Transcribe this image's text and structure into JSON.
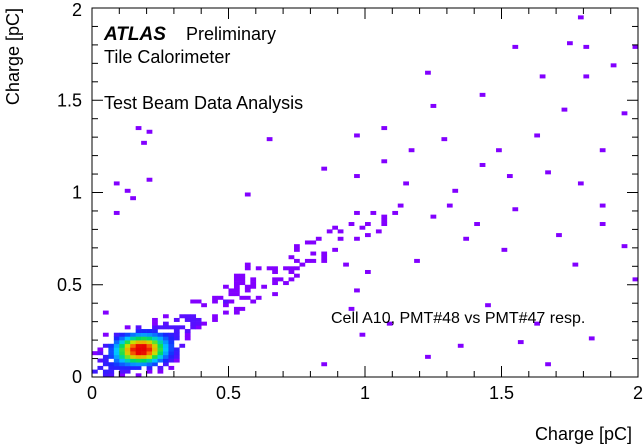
{
  "chart_data": {
    "type": "heatmap",
    "xlabel": "Charge [pC]",
    "ylabel": "Charge [pC]",
    "xlim": [
      0,
      2
    ],
    "ylim": [
      0,
      2
    ],
    "bin_width": 0.02,
    "x_ticks": [
      {
        "value": 0,
        "label": "0"
      },
      {
        "value": 0.5,
        "label": "0.5"
      },
      {
        "value": 1,
        "label": "1"
      },
      {
        "value": 1.5,
        "label": "1.5"
      },
      {
        "value": 2,
        "label": "2"
      }
    ],
    "y_ticks": [
      {
        "value": 0,
        "label": "0"
      },
      {
        "value": 0.5,
        "label": "0.5"
      },
      {
        "value": 1,
        "label": "1"
      },
      {
        "value": 1.5,
        "label": "1.5"
      },
      {
        "value": 2,
        "label": "2"
      }
    ],
    "hotspot": {
      "x": 0.18,
      "y": 0.15
    },
    "scattered_bins": [
      [
        1.78,
        1.94
      ],
      [
        1.74,
        1.8
      ],
      [
        1.81,
        1.79
      ],
      [
        1.55,
        1.78
      ],
      [
        1.98,
        1.78
      ],
      [
        1.91,
        1.68
      ],
      [
        1.81,
        1.62
      ],
      [
        1.64,
        1.62
      ],
      [
        1.43,
        1.53
      ],
      [
        1.22,
        1.64
      ],
      [
        1.29,
        1.28
      ],
      [
        1.17,
        1.23
      ],
      [
        0.96,
        1.31
      ],
      [
        0.97,
        1.08
      ],
      [
        0.84,
        1.14
      ],
      [
        1.06,
        1.17
      ],
      [
        1.15,
        1.05
      ],
      [
        1.33,
        1.01
      ],
      [
        1.42,
        1.16
      ],
      [
        1.53,
        1.09
      ],
      [
        1.66,
        1.11
      ],
      [
        1.79,
        1.04
      ],
      [
        1.87,
        1.22
      ],
      [
        1.95,
        1.43
      ],
      [
        1.72,
        1.45
      ],
      [
        1.62,
        1.31
      ],
      [
        1.55,
        0.91
      ],
      [
        1.71,
        0.76
      ],
      [
        1.86,
        0.83
      ],
      [
        1.94,
        0.71
      ],
      [
        1.98,
        0.53
      ],
      [
        1.77,
        0.6
      ],
      [
        1.51,
        0.68
      ],
      [
        1.37,
        0.74
      ],
      [
        1.25,
        0.86
      ],
      [
        1.12,
        0.92
      ],
      [
        1.04,
        0.79
      ],
      [
        1.19,
        0.62
      ],
      [
        1.88,
        0.94
      ],
      [
        1.45,
        0.39
      ],
      [
        1.62,
        0.28
      ],
      [
        1.35,
        0.17
      ],
      [
        1.22,
        0.11
      ],
      [
        1.09,
        0.29
      ],
      [
        0.99,
        0.23
      ],
      [
        0.95,
        0.36
      ],
      [
        0.85,
        0.07
      ],
      [
        0.64,
        1.29
      ],
      [
        0.17,
        1.35
      ],
      [
        0.2,
        1.33
      ],
      [
        0.19,
        1.27
      ],
      [
        0.09,
        1.04
      ],
      [
        0.12,
        1.01
      ],
      [
        0.08,
        0.88
      ],
      [
        0.21,
        1.07
      ],
      [
        0.15,
        0.97
      ],
      [
        1.06,
        1.35
      ],
      [
        1.25,
        1.47
      ],
      [
        1.48,
        1.22
      ],
      [
        0.58,
        0.99
      ],
      [
        1.67,
        0.07
      ],
      [
        1.83,
        0.21
      ],
      [
        0.92,
        0.61
      ],
      [
        0.97,
        0.47
      ],
      [
        1.01,
        0.56
      ],
      [
        1.31,
        0.94
      ],
      [
        1.41,
        0.83
      ],
      [
        1.56,
        0.18
      ],
      [
        0.31,
        0.12
      ],
      [
        0.05,
        0.35
      ]
    ]
  }
}
